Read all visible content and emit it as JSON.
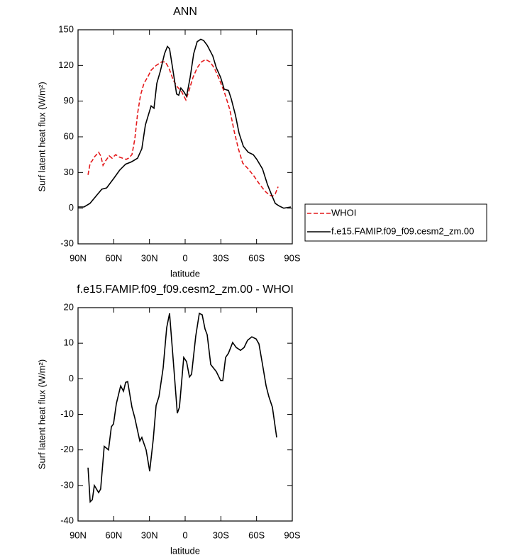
{
  "chart_data": [
    {
      "type": "line",
      "title": "ANN",
      "xlabel": "latitude",
      "ylabel": "Surf latent heat flux (W/m²)",
      "xlim": [
        90,
        -90
      ],
      "xticks": [
        {
          "value": 90,
          "label": "90N"
        },
        {
          "value": 60,
          "label": "60N"
        },
        {
          "value": 30,
          "label": "30N"
        },
        0,
        {
          "value": -30,
          "label": "30S"
        },
        {
          "value": -60,
          "label": "60S"
        },
        {
          "value": -90,
          "label": "90S"
        }
      ],
      "ylim": [
        -30,
        150
      ],
      "yticks": [
        -30,
        0,
        30,
        60,
        90,
        120,
        150
      ],
      "legend": "right",
      "series": [
        {
          "name": "WHOI",
          "color": "#e41a1c",
          "linestyle": "dashed",
          "x": [
            81.6,
            79.8,
            78,
            76.3,
            72.7,
            70.9,
            69,
            66.7,
            63.8,
            61.4,
            58.4,
            55.4,
            52.4,
            49.5,
            47.7,
            44.7,
            42.3,
            39.9,
            37.5,
            34.6,
            31.6,
            28.6,
            24.4,
            19.7,
            16.7,
            13.7,
            10.1,
            6.6,
            3,
            -0.6,
            -3,
            -6.6,
            -10.1,
            -13.7,
            -17.3,
            -20.9,
            -24.4,
            -28,
            -32.8,
            -37.5,
            -41.1,
            -44.7,
            -48.3,
            -53,
            -57.8,
            -62.6,
            -67.4,
            -70.9,
            -73.3,
            -75.7,
            -78.1
          ],
          "values": [
            28,
            38,
            40,
            43,
            47,
            44,
            36,
            40,
            44,
            42,
            45,
            43,
            42,
            41,
            42,
            45,
            58,
            80,
            95,
            105,
            110,
            116,
            120,
            123,
            123,
            118,
            108,
            102,
            98,
            91,
            98,
            110,
            118,
            123,
            125,
            123,
            118,
            110,
            98,
            83,
            65,
            50,
            38,
            33,
            27,
            20,
            14,
            11,
            10,
            12,
            18
          ]
        },
        {
          "name": "f.e15.FAMIP.f09_f09.cesm2_zm.00",
          "color": "#000000",
          "linestyle": "solid",
          "x": [
            90,
            85,
            80,
            75,
            70,
            66,
            60,
            55,
            50,
            45,
            40,
            36.4,
            33.4,
            30.4,
            28.6,
            26.2,
            23.8,
            20.9,
            17.3,
            14.9,
            13.1,
            10.1,
            7.2,
            5.4,
            3.6,
            1.2,
            -1.2,
            -4.2,
            -7.2,
            -10.1,
            -13.1,
            -15.5,
            -18.5,
            -23.2,
            -26.2,
            -29.8,
            -32.8,
            -36.4,
            -38.7,
            -42.3,
            -45.3,
            -48.9,
            -53,
            -57.2,
            -60.2,
            -65,
            -69.1,
            -72.7,
            -75.7,
            -78.7,
            -82.8,
            -88.8
          ],
          "values": [
            1,
            1,
            4,
            10,
            16,
            17,
            25,
            32,
            37,
            39,
            42,
            50,
            70,
            80,
            86,
            84,
            105,
            115,
            130,
            136,
            134,
            115,
            96,
            95,
            101,
            98,
            94,
            110,
            130,
            140,
            142,
            141,
            137,
            128,
            118,
            110,
            100,
            99,
            92,
            78,
            63,
            52,
            47,
            45,
            41,
            33,
            20,
            11,
            4,
            2,
            0,
            1
          ]
        }
      ]
    },
    {
      "type": "line",
      "title": "f.e15.FAMIP.f09_f09.cesm2_zm.00 - WHOI",
      "xlabel": "latitude",
      "ylabel": "Surf latent heat flux (W/m²)",
      "xlim": [
        90,
        -90
      ],
      "xticks": [
        {
          "value": 90,
          "label": "90N"
        },
        {
          "value": 60,
          "label": "60N"
        },
        {
          "value": 30,
          "label": "30N"
        },
        0,
        {
          "value": -30,
          "label": "30S"
        },
        {
          "value": -60,
          "label": "60S"
        },
        {
          "value": -90,
          "label": "90S"
        }
      ],
      "ylim": [
        -40,
        20
      ],
      "yticks": [
        -40,
        -30,
        -20,
        -10,
        0,
        10,
        20
      ],
      "series": [
        {
          "color": "#000000",
          "linestyle": "solid",
          "x": [
            81.6,
            79.8,
            78,
            76.3,
            72.7,
            71,
            68,
            64.4,
            62,
            60.2,
            57.8,
            54.2,
            51.8,
            50,
            48.3,
            44.7,
            42.3,
            38.1,
            36.4,
            32.8,
            29.8,
            26.8,
            24.4,
            22,
            18.5,
            15.5,
            13.1,
            9.5,
            6.6,
            4.8,
            1.2,
            -1.2,
            -3.6,
            -5.4,
            -8.9,
            -11.9,
            -14.3,
            -16.7,
            -18.5,
            -21.5,
            -26.2,
            -29.8,
            -31.6,
            -34,
            -36.4,
            -39.9,
            -42.9,
            -46.5,
            -49.5,
            -52.4,
            -56,
            -59.6,
            -62,
            -65,
            -68,
            -70.3,
            -73.3,
            -76.9
          ],
          "values": [
            -25,
            -34.6,
            -34,
            -30,
            -32,
            -31,
            -19,
            -20,
            -13.5,
            -12.7,
            -7,
            -2,
            -3.5,
            -1,
            -0.8,
            -8,
            -11,
            -17.5,
            -16.5,
            -20,
            -26,
            -17,
            -7.5,
            -5,
            3,
            14.4,
            18.4,
            3,
            -9.7,
            -8,
            6,
            4.8,
            0.5,
            1.3,
            12,
            18.4,
            18,
            14,
            12.4,
            4,
            2,
            -0.5,
            -0.5,
            6,
            7.2,
            10.2,
            8.8,
            8,
            8.8,
            10.8,
            11.8,
            11.2,
            9.8,
            4,
            -2,
            -5,
            -8,
            -16.5
          ]
        }
      ]
    }
  ]
}
